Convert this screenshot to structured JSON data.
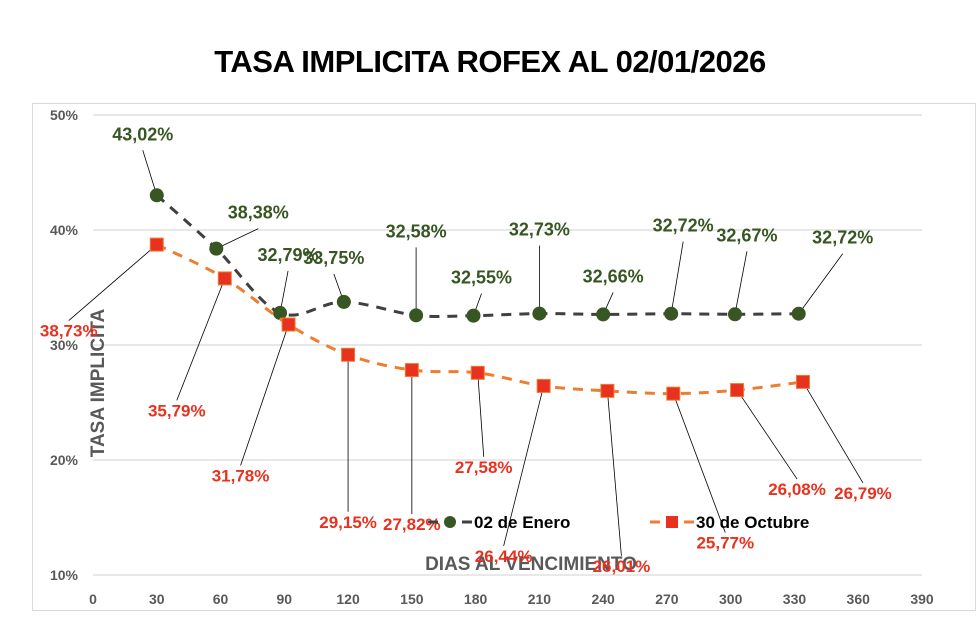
{
  "title": "TASA IMPLICITA ROFEX AL 02/01/2026",
  "chart_data": {
    "type": "line",
    "title": "TASA IMPLICITA ROFEX AL 02/01/2026",
    "xlabel": "DIAS AL VENCIMIENTO",
    "ylabel": "TASA IMPLICITA",
    "xlim": [
      0,
      390
    ],
    "ylim": [
      10,
      50
    ],
    "x_ticks": [
      "0",
      "30",
      "60",
      "90",
      "120",
      "150",
      "180",
      "210",
      "240",
      "270",
      "300",
      "330",
      "360",
      "390"
    ],
    "y_ticks": [
      "10%",
      "20%",
      "30%",
      "40%",
      "50%"
    ],
    "grid": true,
    "legend_position": "bottom-center-inside",
    "series": [
      {
        "name": "02 de Enero",
        "color": "#375623",
        "line_color": "#404040",
        "marker": "circle",
        "line_style": "dashed",
        "x": [
          30,
          58,
          88,
          118,
          152,
          179,
          210,
          240,
          272,
          302,
          332
        ],
        "values": [
          43.02,
          38.38,
          32.79,
          33.75,
          32.58,
          32.55,
          32.73,
          32.66,
          32.72,
          32.67,
          32.72
        ],
        "labels": [
          "43,02%",
          "38,38%",
          "32,79%",
          "33,75%",
          "32,58%",
          "32,55%",
          "32,73%",
          "32,66%",
          "32,72%",
          "32,67%",
          "32,72%"
        ]
      },
      {
        "name": "30 de Octubre",
        "color": "#e8321f",
        "line_color": "#ed7d31",
        "marker": "square",
        "line_style": "dashed",
        "x": [
          30,
          62,
          92,
          120,
          150,
          181,
          212,
          242,
          273,
          303,
          334
        ],
        "values": [
          38.73,
          35.79,
          31.78,
          29.15,
          27.82,
          27.58,
          26.44,
          26.01,
          25.77,
          26.08,
          26.79
        ],
        "labels": [
          "38,73%",
          "35,79%",
          "31,78%",
          "29,15%",
          "27,82%",
          "27,58%",
          "26,44%",
          "26,01%",
          "25,77%",
          "26,08%",
          "26,79%"
        ]
      }
    ]
  },
  "legend": {
    "items": [
      {
        "label": "02 de Enero"
      },
      {
        "label": "30 de Octubre"
      }
    ]
  }
}
